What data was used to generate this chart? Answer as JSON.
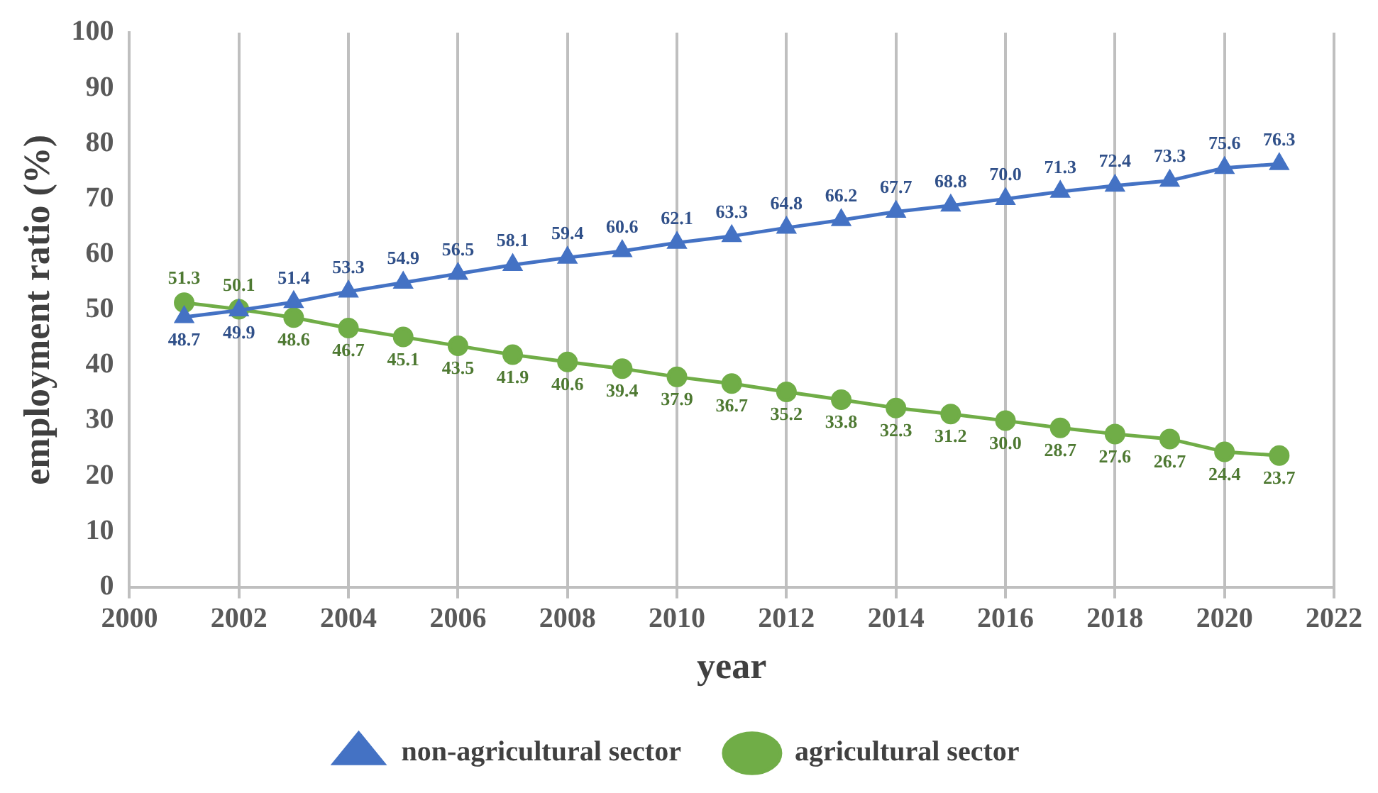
{
  "chart_data": {
    "type": "line",
    "xlabel": "year",
    "ylabel": "employment ratio (%)",
    "x": [
      2001,
      2002,
      2003,
      2004,
      2005,
      2006,
      2007,
      2008,
      2009,
      2010,
      2011,
      2012,
      2013,
      2014,
      2015,
      2016,
      2017,
      2018,
      2019,
      2020,
      2021
    ],
    "series": [
      {
        "name": "non-agricultural sector",
        "color": "#4472c4",
        "marker": "triangle",
        "values": [
          48.7,
          49.9,
          51.4,
          53.3,
          54.9,
          56.5,
          58.1,
          59.4,
          60.6,
          62.1,
          63.3,
          64.8,
          66.2,
          67.7,
          68.8,
          70.0,
          71.3,
          72.4,
          73.3,
          75.6,
          76.3
        ],
        "value_labels": [
          "48.7",
          "49.9",
          "51.4",
          "53.3",
          "54.9",
          "56.5",
          "58.1",
          "59.4",
          "60.6",
          "62.1",
          "63.3",
          "64.8",
          "66.2",
          "67.7",
          "68.8",
          "70.0",
          "71.3",
          "72.4",
          "73.3",
          "75.6",
          "76.3"
        ]
      },
      {
        "name": "agricultural sector",
        "color": "#70ad47",
        "marker": "circle",
        "values": [
          51.3,
          50.1,
          48.6,
          46.7,
          45.1,
          43.5,
          41.9,
          40.6,
          39.4,
          37.9,
          36.7,
          35.2,
          33.8,
          32.3,
          31.2,
          30.0,
          28.7,
          27.6,
          26.7,
          24.4,
          23.7
        ],
        "value_labels": [
          "51.3",
          "50.1",
          "48.6",
          "46.7",
          "45.1",
          "43.5",
          "41.9",
          "40.6",
          "39.4",
          "37.9",
          "36.7",
          "35.2",
          "33.8",
          "32.3",
          "31.2",
          "30.0",
          "28.7",
          "27.6",
          "26.7",
          "24.4",
          "23.7"
        ]
      }
    ],
    "xlim": [
      2000,
      2022
    ],
    "xticks": [
      2000,
      2002,
      2004,
      2006,
      2008,
      2010,
      2012,
      2014,
      2016,
      2018,
      2020,
      2022
    ],
    "ylim": [
      0,
      100
    ],
    "yticks": [
      0,
      10,
      20,
      30,
      40,
      50,
      60,
      70,
      80,
      90,
      100
    ],
    "grid": "x",
    "legend": "bottom",
    "line_style": "solid"
  }
}
